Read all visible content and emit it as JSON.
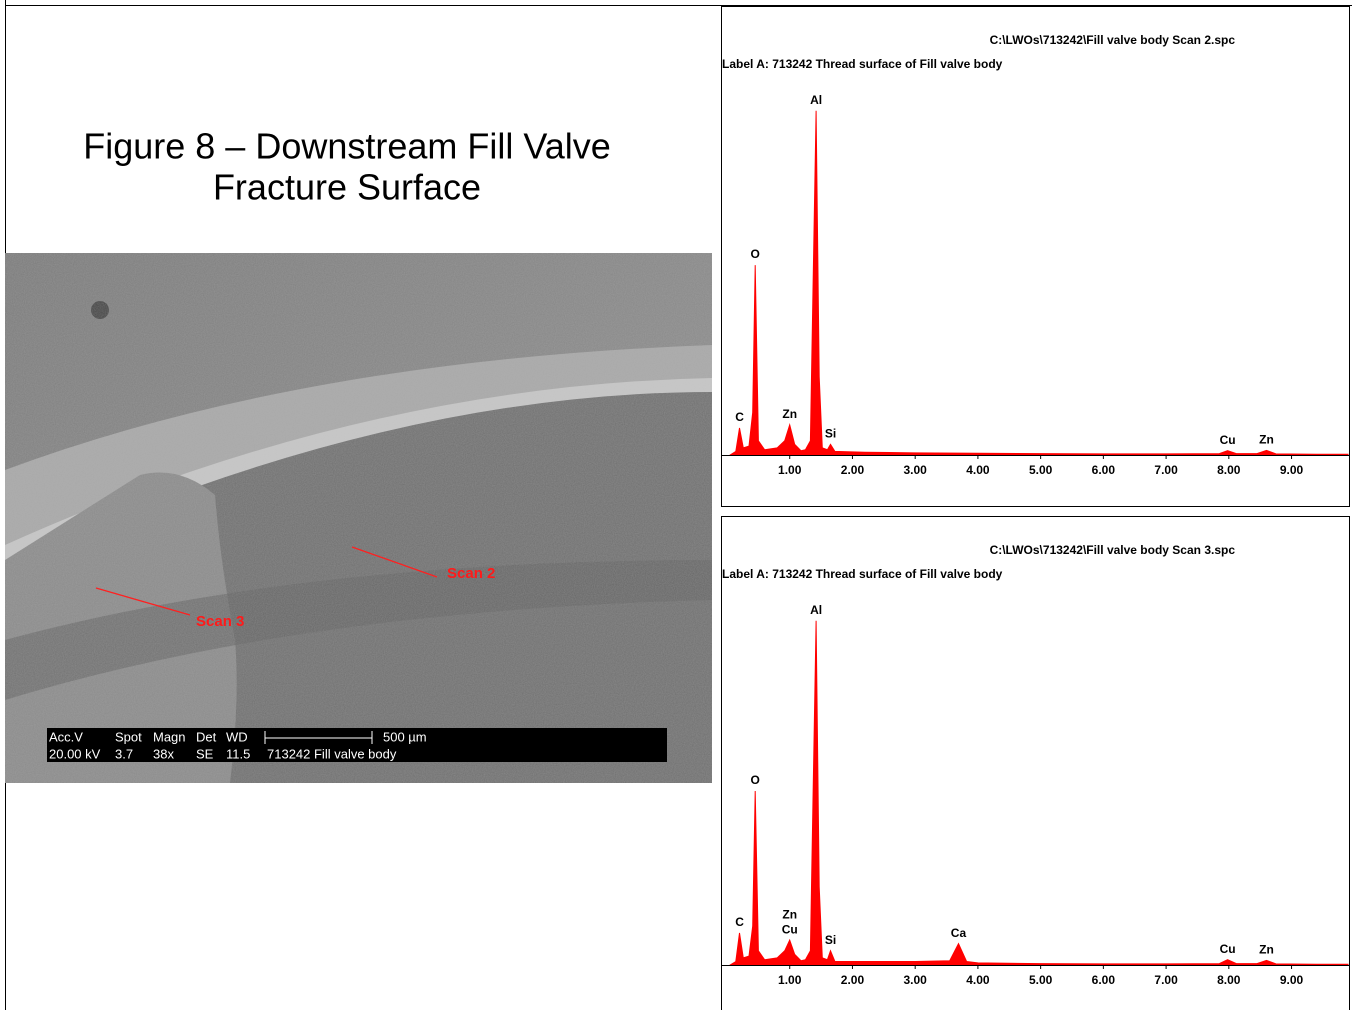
{
  "title": [
    "Figure 8 – Downstream Fill Valve",
    "Fracture Surface"
  ],
  "image": {
    "scan_labels": [
      "Scan 2",
      "Scan 3"
    ],
    "databar": {
      "header": [
        "Acc.V",
        "Spot",
        "Magn",
        "Det",
        "WD"
      ],
      "values": [
        "20.00 kV",
        "3.7",
        "38x",
        "SE",
        "11.5",
        "713242 Fill valve body"
      ],
      "scale": "500 µm"
    }
  },
  "chart_data": [
    {
      "type": "area",
      "file": "C:\\LWOs\\713242\\Fill valve body Scan 2.spc",
      "label": "Label A: 713242 Thread surface of Fill valve body",
      "color": "#ff0000",
      "x": [
        0.05,
        0.14,
        0.2,
        0.26,
        0.35,
        0.41,
        0.45,
        0.5,
        0.6,
        0.8,
        0.92,
        1.0,
        1.08,
        1.18,
        1.25,
        1.33,
        1.37,
        1.42,
        1.47,
        1.52,
        1.6,
        1.65,
        1.72,
        2.2,
        3,
        4,
        5,
        6,
        7,
        7.85,
        7.98,
        8.12,
        8.45,
        8.6,
        8.75,
        9.4,
        9.9
      ],
      "values": [
        0,
        1,
        7.6,
        2,
        2.5,
        12,
        53.5,
        4,
        1.5,
        2,
        4,
        8.5,
        3,
        1.2,
        1.5,
        4,
        45,
        97,
        22,
        2,
        1.5,
        3,
        1,
        0.8,
        0.6,
        0.5,
        0.4,
        0.3,
        0.3,
        0.4,
        1.2,
        0.4,
        0.4,
        1.3,
        0.3,
        0.2,
        0.2
      ],
      "peaks": [
        {
          "label": "C",
          "x": 0.2
        },
        {
          "label": "O",
          "x": 0.45
        },
        {
          "label": "Zn",
          "x": 1.0
        },
        {
          "label": "Al",
          "x": 1.42
        },
        {
          "label": "Si",
          "x": 1.65
        },
        {
          "label": "Cu",
          "x": 7.98
        },
        {
          "label": "Zn",
          "x": 8.6
        }
      ],
      "xlim": [
        0,
        9.9
      ],
      "ylim": [
        0,
        100
      ],
      "xticks": [
        {
          "value": 1,
          "label": "1.00"
        },
        {
          "value": 2,
          "label": "2.00"
        },
        {
          "value": 3,
          "label": "3.00"
        },
        {
          "value": 4,
          "label": "4.00"
        },
        {
          "value": 5,
          "label": "5.00"
        },
        {
          "value": 6,
          "label": "6.00"
        },
        {
          "value": 7,
          "label": "7.00"
        },
        {
          "value": 8,
          "label": "8.00"
        },
        {
          "value": 9,
          "label": "9.00"
        }
      ]
    },
    {
      "type": "area",
      "file": "C:\\LWOs\\713242\\Fill valve body Scan 3.spc",
      "label": "Label A: 713242 Thread surface of Fill valve body",
      "color": "#ff0000",
      "x": [
        0.05,
        0.14,
        0.2,
        0.26,
        0.35,
        0.41,
        0.45,
        0.5,
        0.6,
        0.8,
        0.92,
        1.0,
        1.08,
        1.18,
        1.25,
        1.33,
        1.37,
        1.42,
        1.47,
        1.52,
        1.6,
        1.65,
        1.72,
        2.2,
        3,
        3.55,
        3.69,
        3.82,
        4,
        5,
        6,
        7,
        7.85,
        7.98,
        8.12,
        8.45,
        8.6,
        8.75,
        9.4,
        9.9
      ],
      "values": [
        0,
        1,
        9,
        2,
        2.5,
        11,
        49,
        4,
        1.5,
        2,
        4,
        7,
        3,
        1.2,
        1.5,
        4,
        45,
        97,
        22,
        2,
        1.5,
        4,
        1,
        1,
        1,
        1.2,
        6,
        1,
        0.6,
        0.4,
        0.3,
        0.3,
        0.4,
        1.5,
        0.4,
        0.4,
        1.3,
        0.3,
        0.2,
        0.2
      ],
      "peaks": [
        {
          "label": "C",
          "x": 0.2
        },
        {
          "label": "O",
          "x": 0.45
        },
        {
          "label": "Cu",
          "x": 1.0
        },
        {
          "label": "Zn",
          "x": 1.0
        },
        {
          "label": "Al",
          "x": 1.42
        },
        {
          "label": "Si",
          "x": 1.65
        },
        {
          "label": "Ca",
          "x": 3.69
        },
        {
          "label": "Cu",
          "x": 7.98
        },
        {
          "label": "Zn",
          "x": 8.6
        }
      ],
      "xlim": [
        0,
        9.9
      ],
      "ylim": [
        0,
        100
      ],
      "xticks": [
        {
          "value": 1,
          "label": "1.00"
        },
        {
          "value": 2,
          "label": "2.00"
        },
        {
          "value": 3,
          "label": "3.00"
        },
        {
          "value": 4,
          "label": "4.00"
        },
        {
          "value": 5,
          "label": "5.00"
        },
        {
          "value": 6,
          "label": "6.00"
        },
        {
          "value": 7,
          "label": "7.00"
        },
        {
          "value": 8,
          "label": "8.00"
        },
        {
          "value": 9,
          "label": "9.00"
        }
      ]
    }
  ]
}
